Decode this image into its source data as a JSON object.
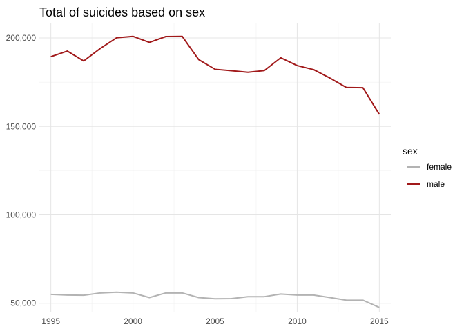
{
  "chart_data": {
    "type": "line",
    "title": "Total of suicides based on sex",
    "xlabel": "",
    "ylabel": "",
    "x": [
      1995,
      1996,
      1997,
      1998,
      1999,
      2000,
      2001,
      2002,
      2003,
      2004,
      2005,
      2006,
      2007,
      2008,
      2009,
      2010,
      2011,
      2012,
      2013,
      2014,
      2015
    ],
    "xticks": [
      1995,
      2000,
      2005,
      2010,
      2015
    ],
    "xtick_labels": [
      "1995",
      "2000",
      "2005",
      "2010",
      "2015"
    ],
    "yticks": [
      50000,
      100000,
      150000,
      200000
    ],
    "ytick_labels": [
      "50,000",
      "100,000",
      "150,000",
      "200,000"
    ],
    "xlim": [
      1994.3,
      2015.7
    ],
    "ylim": [
      45200,
      208600
    ],
    "grid": true,
    "legend_position": "right",
    "legend_title": "sex",
    "series": [
      {
        "name": "female",
        "color": "#b3b3b3",
        "values": [
          55000,
          54600,
          54500,
          55800,
          56200,
          55800,
          53200,
          55800,
          55800,
          53200,
          52500,
          52600,
          53700,
          53700,
          55200,
          54600,
          54600,
          53200,
          51700,
          51700,
          47600
        ]
      },
      {
        "name": "male",
        "color": "#a1191a",
        "values": [
          189400,
          192600,
          187000,
          194000,
          200100,
          200900,
          197500,
          200800,
          200900,
          187800,
          182300,
          181500,
          180600,
          181600,
          188800,
          184400,
          182100,
          177300,
          172000,
          171900,
          156800
        ]
      }
    ]
  }
}
